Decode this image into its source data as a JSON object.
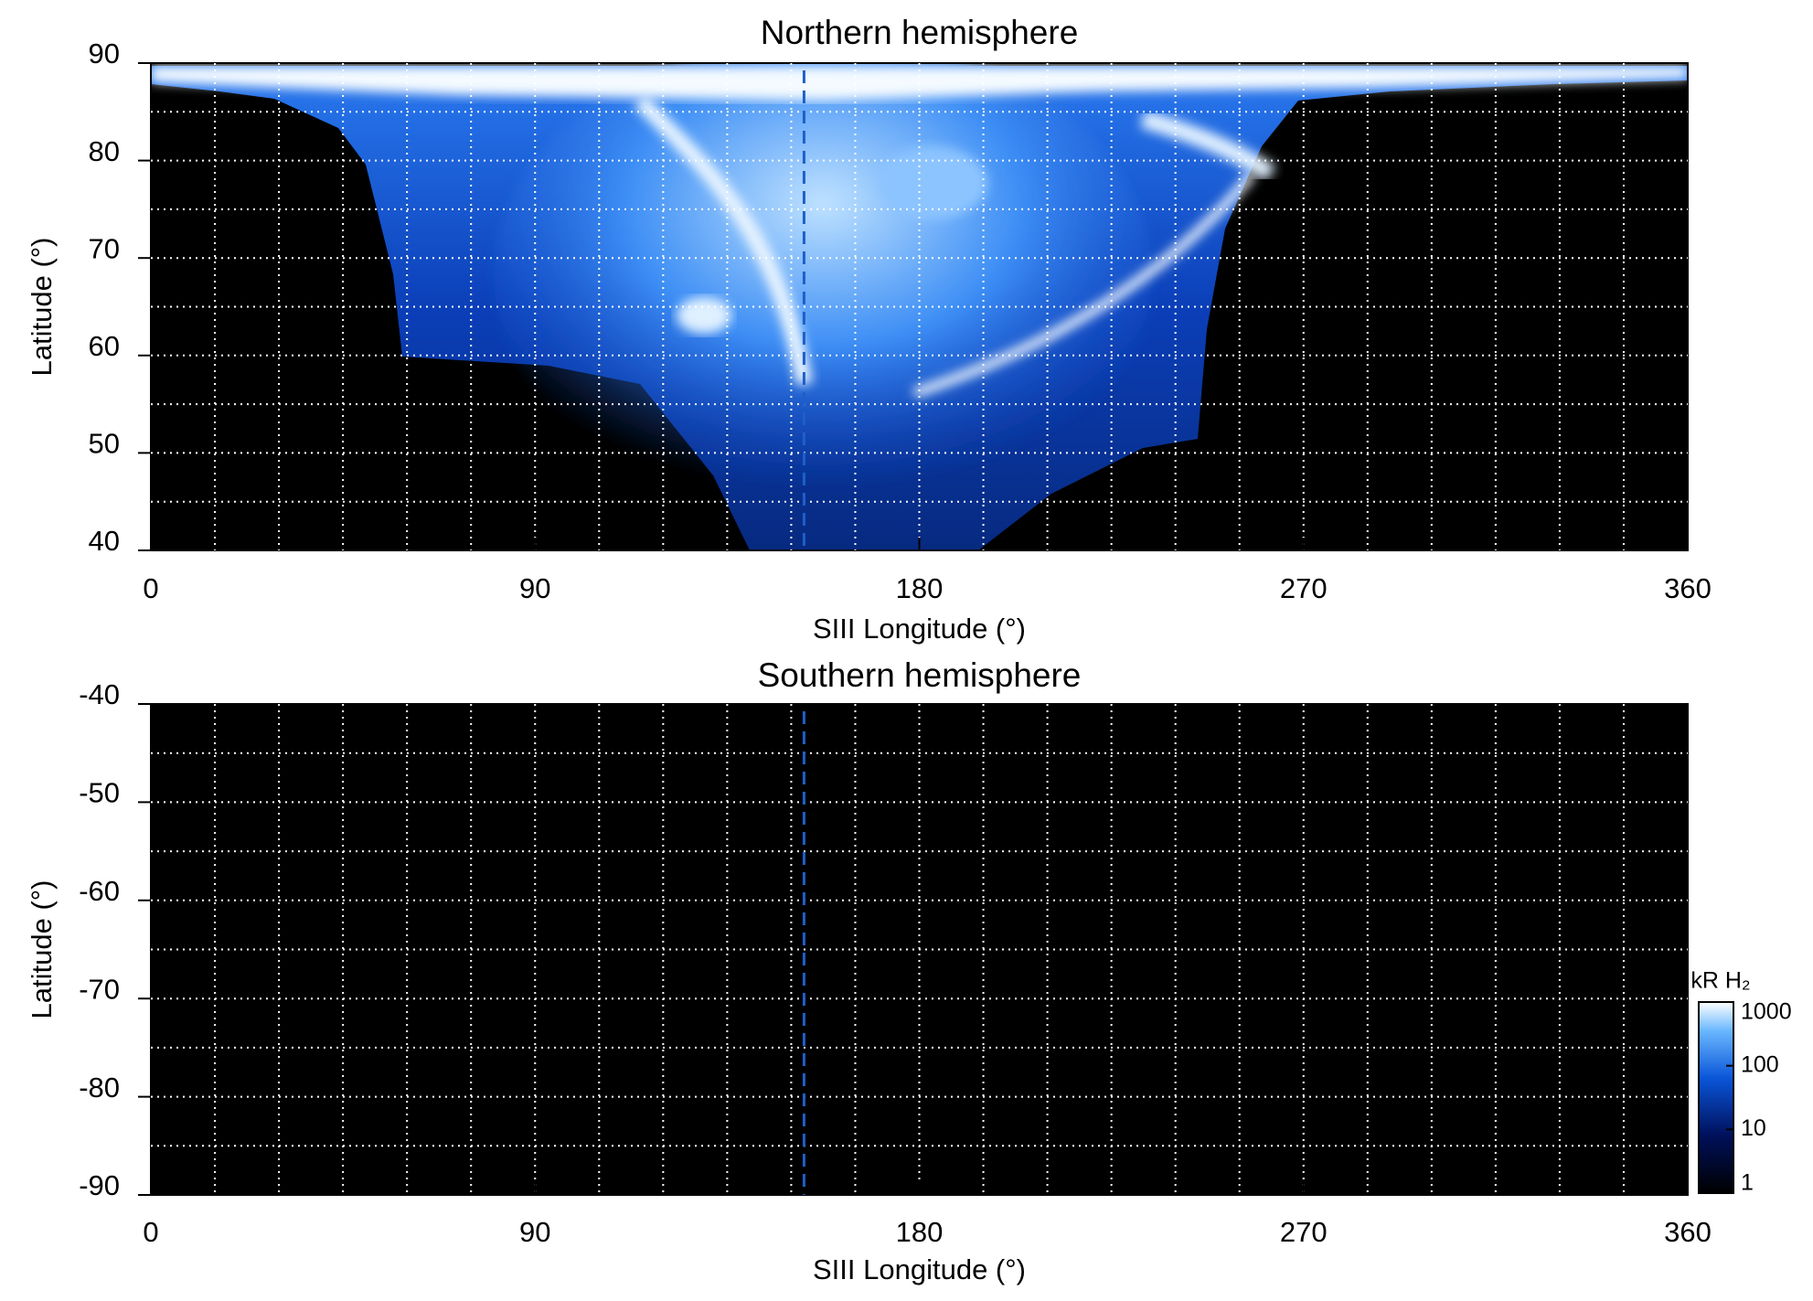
{
  "chart_data": [
    {
      "type": "heatmap",
      "title": "Northern hemisphere",
      "xlabel": "SIII Longitude (°)",
      "ylabel": "Latitude (°)",
      "xlim": [
        0,
        360
      ],
      "xticks": [
        0,
        90,
        180,
        270,
        360
      ],
      "ylim": [
        40,
        90
      ],
      "yticks": [
        40,
        50,
        60,
        70,
        80,
        90
      ],
      "xgrid": [
        15,
        30,
        45,
        60,
        75,
        90,
        105,
        120,
        135,
        150,
        165,
        180,
        195,
        210,
        225,
        240,
        255,
        270,
        285,
        300,
        315,
        330,
        345
      ],
      "ygrid": [
        45,
        50,
        55,
        60,
        65,
        70,
        75,
        80,
        85
      ],
      "vline": {
        "x": 153,
        "color": "#1f5fc8"
      }
    },
    {
      "type": "heatmap",
      "title": "Southern hemisphere",
      "xlabel": "SIII Longitude (°)",
      "ylabel": "Latitude (°)",
      "xlim": [
        0,
        360
      ],
      "xticks": [
        0,
        90,
        180,
        270,
        360
      ],
      "ylim": [
        -90,
        -40
      ],
      "yticks": [
        -90,
        -80,
        -70,
        -60,
        -50,
        -40
      ],
      "xgrid": [
        15,
        30,
        45,
        60,
        75,
        90,
        105,
        120,
        135,
        150,
        165,
        180,
        195,
        210,
        225,
        240,
        255,
        270,
        285,
        300,
        315,
        330,
        345
      ],
      "ygrid": [
        -85,
        -80,
        -75,
        -70,
        -65,
        -60,
        -55,
        -50,
        -45
      ],
      "vline": {
        "x": 153,
        "color": "#1f5fc8"
      },
      "colorbar": {
        "label": "kR H₂",
        "scale": "log",
        "lim": [
          1,
          1000
        ],
        "ticks": [
          1,
          10,
          100,
          1000
        ]
      }
    }
  ]
}
